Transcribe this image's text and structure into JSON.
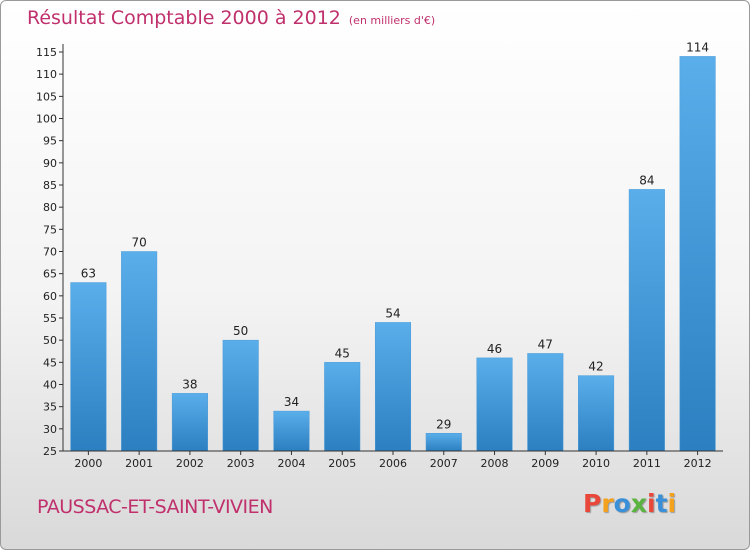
{
  "chart_data": {
    "type": "bar",
    "title": "Résultat Comptable 2000 à 2012",
    "subtitle": "(en milliers d'€)",
    "categories": [
      "2000",
      "2001",
      "2002",
      "2003",
      "2004",
      "2005",
      "2006",
      "2007",
      "2008",
      "2009",
      "2010",
      "2011",
      "2012"
    ],
    "values": [
      63,
      70,
      38,
      50,
      34,
      45,
      54,
      29,
      46,
      47,
      42,
      84,
      114
    ],
    "ylim": [
      25,
      115
    ],
    "yticks": [
      25,
      30,
      35,
      40,
      45,
      50,
      55,
      60,
      65,
      70,
      75,
      80,
      85,
      90,
      95,
      100,
      105,
      110,
      115
    ],
    "xlabel": "",
    "ylabel": "",
    "grid": false,
    "bar_color_top": "#5aaeea",
    "bar_color_bottom": "#2c7fc0"
  },
  "footer": {
    "place_name": "PAUSSAC-ET-SAINT-VIVIEN",
    "logo_text": "Proxiti",
    "logo_colors": [
      "#e8473a",
      "#f4a11d",
      "#3a8fd9",
      "#5ab33e",
      "#e8473a",
      "#3a8fd9",
      "#f4a11d"
    ]
  }
}
